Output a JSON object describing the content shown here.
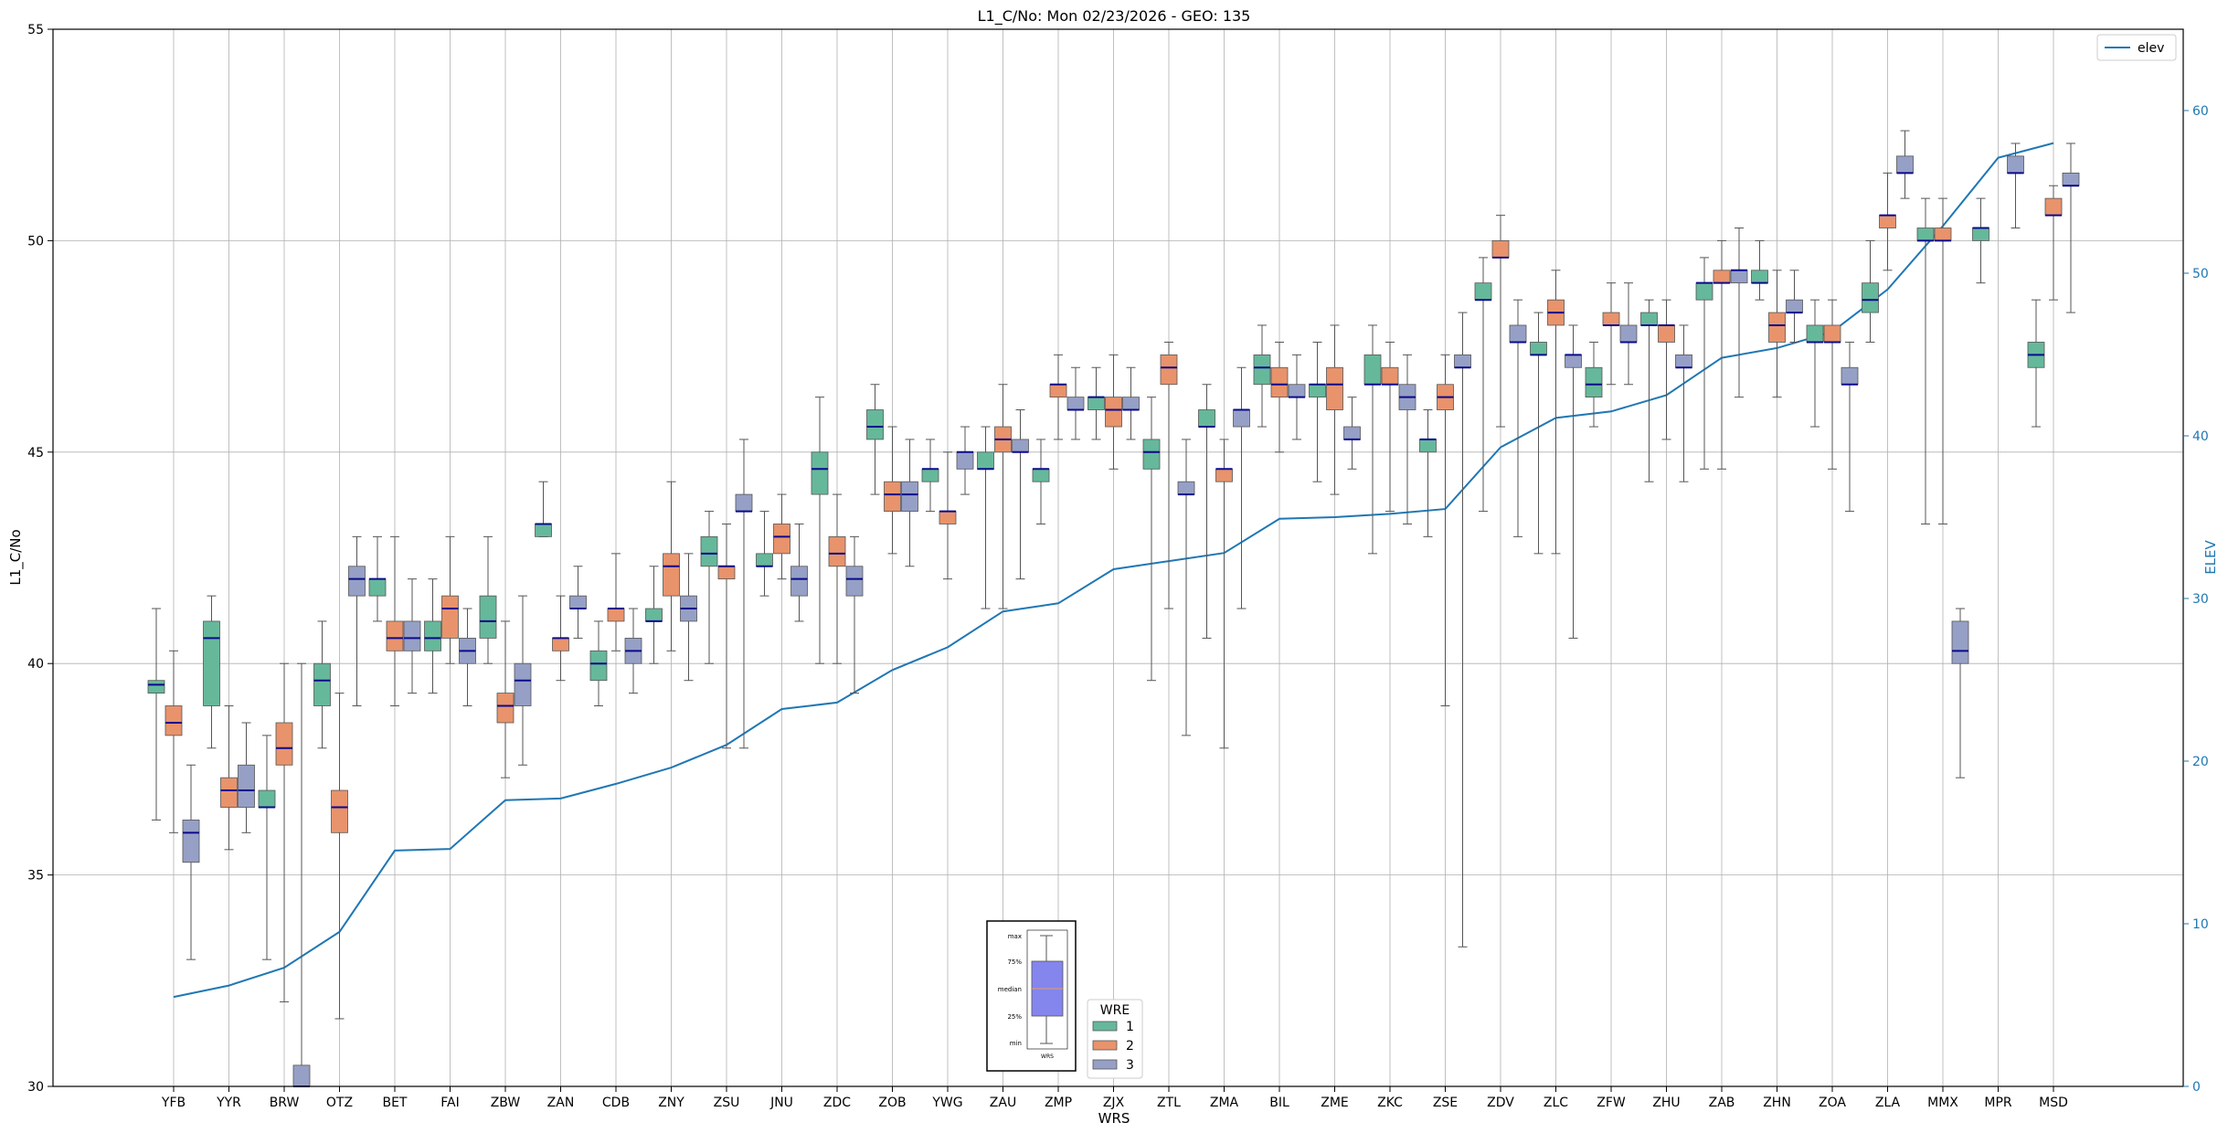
{
  "chart_data": {
    "type": "box",
    "title": "L1_C/No: Mon 02/23/2026 - GEO: 135",
    "xlabel": "WRS",
    "ylabel": "L1_C/No",
    "y2label": "ELEV",
    "ylim": [
      30,
      55
    ],
    "y2lim": [
      0,
      65
    ],
    "yticks": [
      30,
      35,
      40,
      45,
      50,
      55
    ],
    "y2ticks": [
      0,
      10,
      20,
      30,
      40,
      50,
      60
    ],
    "grid": true,
    "categories": [
      "YFB",
      "YYR",
      "BRW",
      "OTZ",
      "BET",
      "FAI",
      "ZBW",
      "ZAN",
      "CDB",
      "ZNY",
      "ZSU",
      "JNU",
      "ZDC",
      "ZOB",
      "YWG",
      "ZAU",
      "ZMP",
      "ZJX",
      "ZTL",
      "ZMA",
      "BIL",
      "ZME",
      "ZKC",
      "ZSE",
      "ZDV",
      "ZLC",
      "ZFW",
      "ZHU",
      "ZAB",
      "ZHN",
      "ZOA",
      "ZLA",
      "MMX",
      "MPR",
      "MSD"
    ],
    "series": [
      {
        "name": "1",
        "color": "#66b89b",
        "boxes": [
          {
            "min": 36.3,
            "q1": 39.3,
            "median": 39.5,
            "q3": 39.6,
            "max": 41.3
          },
          {
            "min": 38.0,
            "q1": 39.0,
            "median": 40.6,
            "q3": 41.0,
            "max": 41.6
          },
          {
            "min": 33.0,
            "q1": 36.6,
            "median": 36.6,
            "q3": 37.0,
            "max": 38.3
          },
          {
            "min": 38.0,
            "q1": 39.0,
            "median": 39.6,
            "q3": 40.0,
            "max": 41.0
          },
          {
            "min": 41.0,
            "q1": 41.6,
            "median": 42.0,
            "q3": 42.0,
            "max": 43.0
          },
          {
            "min": 39.3,
            "q1": 40.3,
            "median": 40.6,
            "q3": 41.0,
            "max": 42.0
          },
          {
            "min": 40.0,
            "q1": 40.6,
            "median": 41.0,
            "q3": 41.6,
            "max": 43.0
          },
          {
            "min": 43.0,
            "q1": 43.0,
            "median": 43.3,
            "q3": 43.3,
            "max": 44.3
          },
          {
            "min": 39.0,
            "q1": 39.6,
            "median": 40.0,
            "q3": 40.3,
            "max": 41.0
          },
          {
            "min": 40.0,
            "q1": 41.0,
            "median": 41.0,
            "q3": 41.3,
            "max": 42.3
          },
          {
            "min": 40.0,
            "q1": 42.3,
            "median": 42.6,
            "q3": 43.0,
            "max": 43.6
          },
          {
            "min": 41.6,
            "q1": 42.3,
            "median": 42.3,
            "q3": 42.6,
            "max": 43.6
          },
          {
            "min": 40.0,
            "q1": 44.0,
            "median": 44.6,
            "q3": 45.0,
            "max": 46.3
          },
          {
            "min": 44.0,
            "q1": 45.3,
            "median": 45.6,
            "q3": 46.0,
            "max": 46.6
          },
          {
            "min": 43.6,
            "q1": 44.3,
            "median": 44.6,
            "q3": 44.6,
            "max": 45.3
          },
          {
            "min": 41.3,
            "q1": 44.6,
            "median": 44.6,
            "q3": 45.0,
            "max": 45.6
          },
          {
            "min": 43.3,
            "q1": 44.3,
            "median": 44.6,
            "q3": 44.6,
            "max": 45.3
          },
          {
            "min": 45.3,
            "q1": 46.0,
            "median": 46.3,
            "q3": 46.3,
            "max": 47.0
          },
          {
            "min": 39.6,
            "q1": 44.6,
            "median": 45.0,
            "q3": 45.3,
            "max": 46.3
          },
          {
            "min": 40.6,
            "q1": 45.6,
            "median": 45.6,
            "q3": 46.0,
            "max": 46.6
          },
          {
            "min": 45.6,
            "q1": 46.6,
            "median": 47.0,
            "q3": 47.3,
            "max": 48.0
          },
          {
            "min": 44.3,
            "q1": 46.3,
            "median": 46.6,
            "q3": 46.6,
            "max": 47.6
          },
          {
            "min": 42.6,
            "q1": 46.6,
            "median": 46.6,
            "q3": 47.3,
            "max": 48.0
          },
          {
            "min": 43.0,
            "q1": 45.0,
            "median": 45.3,
            "q3": 45.3,
            "max": 46.0
          },
          {
            "min": 43.6,
            "q1": 48.6,
            "median": 48.6,
            "q3": 49.0,
            "max": 49.6
          },
          {
            "min": 42.6,
            "q1": 47.3,
            "median": 47.3,
            "q3": 47.6,
            "max": 48.3
          },
          {
            "min": 45.6,
            "q1": 46.3,
            "median": 46.6,
            "q3": 47.0,
            "max": 47.6
          },
          {
            "min": 44.3,
            "q1": 48.0,
            "median": 48.0,
            "q3": 48.3,
            "max": 48.6
          },
          {
            "min": 44.6,
            "q1": 48.6,
            "median": 49.0,
            "q3": 49.0,
            "max": 49.6
          },
          {
            "min": 48.6,
            "q1": 49.0,
            "median": 49.0,
            "q3": 49.3,
            "max": 50.0
          },
          {
            "min": 45.6,
            "q1": 47.6,
            "median": 47.6,
            "q3": 48.0,
            "max": 48.6
          },
          {
            "min": 47.6,
            "q1": 48.3,
            "median": 48.6,
            "q3": 49.0,
            "max": 50.0
          },
          {
            "min": 43.3,
            "q1": 50.0,
            "median": 50.0,
            "q3": 50.3,
            "max": 51.0
          },
          {
            "min": 49.0,
            "q1": 50.0,
            "median": 50.3,
            "q3": 50.3,
            "max": 51.0
          },
          {
            "min": 45.6,
            "q1": 47.0,
            "median": 47.3,
            "q3": 47.6,
            "max": 48.6
          }
        ]
      },
      {
        "name": "2",
        "color": "#e8936c",
        "boxes": [
          {
            "min": 36.0,
            "q1": 38.3,
            "median": 38.6,
            "q3": 39.0,
            "max": 40.3
          },
          {
            "min": 35.6,
            "q1": 36.6,
            "median": 37.0,
            "q3": 37.3,
            "max": 39.0
          },
          {
            "min": 32.0,
            "q1": 37.6,
            "median": 38.0,
            "q3": 38.6,
            "max": 40.0
          },
          {
            "min": 31.6,
            "q1": 36.0,
            "median": 36.6,
            "q3": 37.0,
            "max": 39.3
          },
          {
            "min": 39.0,
            "q1": 40.3,
            "median": 40.6,
            "q3": 41.0,
            "max": 43.0
          },
          {
            "min": 40.0,
            "q1": 40.6,
            "median": 41.3,
            "q3": 41.6,
            "max": 43.0
          },
          {
            "min": 37.3,
            "q1": 38.6,
            "median": 39.0,
            "q3": 39.3,
            "max": 41.0
          },
          {
            "min": 39.6,
            "q1": 40.3,
            "median": 40.6,
            "q3": 40.6,
            "max": 41.6
          },
          {
            "min": 40.3,
            "q1": 41.0,
            "median": 41.3,
            "q3": 41.3,
            "max": 42.6
          },
          {
            "min": 40.3,
            "q1": 41.6,
            "median": 42.3,
            "q3": 42.6,
            "max": 44.3
          },
          {
            "min": 38.0,
            "q1": 42.0,
            "median": 42.3,
            "q3": 42.3,
            "max": 43.3
          },
          {
            "min": 42.0,
            "q1": 42.6,
            "median": 43.0,
            "q3": 43.3,
            "max": 44.0
          },
          {
            "min": 40.0,
            "q1": 42.3,
            "median": 42.6,
            "q3": 43.0,
            "max": 44.0
          },
          {
            "min": 42.6,
            "q1": 43.6,
            "median": 44.0,
            "q3": 44.3,
            "max": 45.6
          },
          {
            "min": 42.0,
            "q1": 43.3,
            "median": 43.6,
            "q3": 43.6,
            "max": 45.0
          },
          {
            "min": 41.3,
            "q1": 45.0,
            "median": 45.3,
            "q3": 45.6,
            "max": 46.6
          },
          {
            "min": 45.3,
            "q1": 46.3,
            "median": 46.6,
            "q3": 46.6,
            "max": 47.3
          },
          {
            "min": 44.6,
            "q1": 45.6,
            "median": 46.0,
            "q3": 46.3,
            "max": 47.3
          },
          {
            "min": 41.3,
            "q1": 46.6,
            "median": 47.0,
            "q3": 47.3,
            "max": 47.6
          },
          {
            "min": 38.0,
            "q1": 44.3,
            "median": 44.6,
            "q3": 44.6,
            "max": 45.3
          },
          {
            "min": 45.0,
            "q1": 46.3,
            "median": 46.6,
            "q3": 47.0,
            "max": 47.6
          },
          {
            "min": 44.0,
            "q1": 46.0,
            "median": 46.6,
            "q3": 47.0,
            "max": 48.0
          },
          {
            "min": 43.6,
            "q1": 46.6,
            "median": 46.6,
            "q3": 47.0,
            "max": 47.6
          },
          {
            "min": 39.0,
            "q1": 46.0,
            "median": 46.3,
            "q3": 46.6,
            "max": 47.3
          },
          {
            "min": 45.6,
            "q1": 49.6,
            "median": 49.6,
            "q3": 50.0,
            "max": 50.6
          },
          {
            "min": 42.6,
            "q1": 48.0,
            "median": 48.3,
            "q3": 48.6,
            "max": 49.3
          },
          {
            "min": 46.6,
            "q1": 48.0,
            "median": 48.0,
            "q3": 48.3,
            "max": 49.0
          },
          {
            "min": 45.3,
            "q1": 47.6,
            "median": 48.0,
            "q3": 48.0,
            "max": 48.6
          },
          {
            "min": 44.6,
            "q1": 49.0,
            "median": 49.0,
            "q3": 49.3,
            "max": 50.0
          },
          {
            "min": 46.3,
            "q1": 47.6,
            "median": 48.0,
            "q3": 48.3,
            "max": 49.3
          },
          {
            "min": 44.6,
            "q1": 47.6,
            "median": 47.6,
            "q3": 48.0,
            "max": 48.6
          },
          {
            "min": 49.3,
            "q1": 50.3,
            "median": 50.6,
            "q3": 50.6,
            "max": 51.6
          },
          {
            "min": 43.3,
            "q1": 50.0,
            "median": 50.0,
            "q3": 50.3,
            "max": 51.0
          },
          null,
          {
            "min": 48.6,
            "q1": 50.6,
            "median": 50.6,
            "q3": 51.0,
            "max": 51.3
          }
        ]
      },
      {
        "name": "3",
        "color": "#96a0c6",
        "boxes": [
          {
            "min": 33.0,
            "q1": 35.3,
            "median": 36.0,
            "q3": 36.3,
            "max": 37.6
          },
          {
            "min": 36.0,
            "q1": 36.6,
            "median": 37.0,
            "q3": 37.6,
            "max": 38.6
          },
          {
            "min": 30.0,
            "q1": 30.0,
            "median": 30.0,
            "q3": 30.5,
            "max": 40.0
          },
          {
            "min": 39.0,
            "q1": 41.6,
            "median": 42.0,
            "q3": 42.3,
            "max": 43.0
          },
          {
            "min": 39.3,
            "q1": 40.3,
            "median": 40.6,
            "q3": 41.0,
            "max": 42.0
          },
          {
            "min": 39.0,
            "q1": 40.0,
            "median": 40.3,
            "q3": 40.6,
            "max": 41.3
          },
          {
            "min": 37.6,
            "q1": 39.0,
            "median": 39.6,
            "q3": 40.0,
            "max": 41.6
          },
          {
            "min": 40.6,
            "q1": 41.3,
            "median": 41.3,
            "q3": 41.6,
            "max": 42.3
          },
          {
            "min": 39.3,
            "q1": 40.0,
            "median": 40.3,
            "q3": 40.6,
            "max": 41.3
          },
          {
            "min": 39.6,
            "q1": 41.0,
            "median": 41.3,
            "q3": 41.6,
            "max": 42.6
          },
          {
            "min": 38.0,
            "q1": 43.6,
            "median": 43.6,
            "q3": 44.0,
            "max": 45.3
          },
          {
            "min": 41.0,
            "q1": 41.6,
            "median": 42.0,
            "q3": 42.3,
            "max": 43.3
          },
          {
            "min": 39.3,
            "q1": 41.6,
            "median": 42.0,
            "q3": 42.3,
            "max": 43.0
          },
          {
            "min": 42.3,
            "q1": 43.6,
            "median": 44.0,
            "q3": 44.3,
            "max": 45.3
          },
          {
            "min": 44.0,
            "q1": 44.6,
            "median": 45.0,
            "q3": 45.0,
            "max": 45.6
          },
          {
            "min": 42.0,
            "q1": 45.0,
            "median": 45.0,
            "q3": 45.3,
            "max": 46.0
          },
          {
            "min": 45.3,
            "q1": 46.0,
            "median": 46.0,
            "q3": 46.3,
            "max": 47.0
          },
          {
            "min": 45.3,
            "q1": 46.0,
            "median": 46.0,
            "q3": 46.3,
            "max": 47.0
          },
          {
            "min": 38.3,
            "q1": 44.0,
            "median": 44.0,
            "q3": 44.3,
            "max": 45.3
          },
          {
            "min": 41.3,
            "q1": 45.6,
            "median": 46.0,
            "q3": 46.0,
            "max": 47.0
          },
          {
            "min": 45.3,
            "q1": 46.3,
            "median": 46.3,
            "q3": 46.6,
            "max": 47.3
          },
          {
            "min": 44.6,
            "q1": 45.3,
            "median": 45.3,
            "q3": 45.6,
            "max": 46.3
          },
          {
            "min": 43.3,
            "q1": 46.0,
            "median": 46.3,
            "q3": 46.6,
            "max": 47.3
          },
          {
            "min": 33.3,
            "q1": 47.0,
            "median": 47.0,
            "q3": 47.3,
            "max": 48.3
          },
          {
            "min": 43.0,
            "q1": 47.6,
            "median": 47.6,
            "q3": 48.0,
            "max": 48.6
          },
          {
            "min": 40.6,
            "q1": 47.0,
            "median": 47.3,
            "q3": 47.3,
            "max": 48.0
          },
          {
            "min": 46.6,
            "q1": 47.6,
            "median": 47.6,
            "q3": 48.0,
            "max": 49.0
          },
          {
            "min": 44.3,
            "q1": 47.0,
            "median": 47.0,
            "q3": 47.3,
            "max": 48.0
          },
          {
            "min": 46.3,
            "q1": 49.0,
            "median": 49.3,
            "q3": 49.3,
            "max": 50.3
          },
          {
            "min": 47.6,
            "q1": 48.3,
            "median": 48.3,
            "q3": 48.6,
            "max": 49.3
          },
          {
            "min": 43.6,
            "q1": 46.6,
            "median": 46.6,
            "q3": 47.0,
            "max": 47.6
          },
          {
            "min": 51.0,
            "q1": 51.6,
            "median": 51.6,
            "q3": 52.0,
            "max": 52.6
          },
          {
            "min": 37.3,
            "q1": 40.0,
            "median": 40.3,
            "q3": 41.0,
            "max": 41.3
          },
          {
            "min": 50.3,
            "q1": 51.6,
            "median": 51.6,
            "q3": 52.0,
            "max": 52.3
          },
          {
            "min": 48.3,
            "q1": 51.3,
            "median": 51.3,
            "q3": 51.6,
            "max": 52.3
          }
        ]
      }
    ],
    "elevation": {
      "name": "elev",
      "color": "#1f77b4",
      "values": [
        5.5,
        6.2,
        7.3,
        9.5,
        14.5,
        14.6,
        17.6,
        17.7,
        18.6,
        19.6,
        21.0,
        23.2,
        23.6,
        25.6,
        27.0,
        29.2,
        29.7,
        31.8,
        32.3,
        32.8,
        34.9,
        35.0,
        35.2,
        35.5,
        39.3,
        41.1,
        41.5,
        42.5,
        44.8,
        45.4,
        46.4,
        49.0,
        52.9,
        57.1,
        58.0
      ]
    },
    "legend_elev": {
      "label": "elev",
      "position": "upper right"
    },
    "legend_wre": {
      "title": "WRE",
      "labels": [
        "1",
        "2",
        "3"
      ],
      "position": "lower center"
    },
    "box_key": {
      "labels": {
        "max": "max",
        "q3": "75%",
        "median": "median",
        "q1": "25%",
        "min": "min"
      },
      "xlabel": "WRS",
      "box_color": "#8585ee"
    }
  }
}
